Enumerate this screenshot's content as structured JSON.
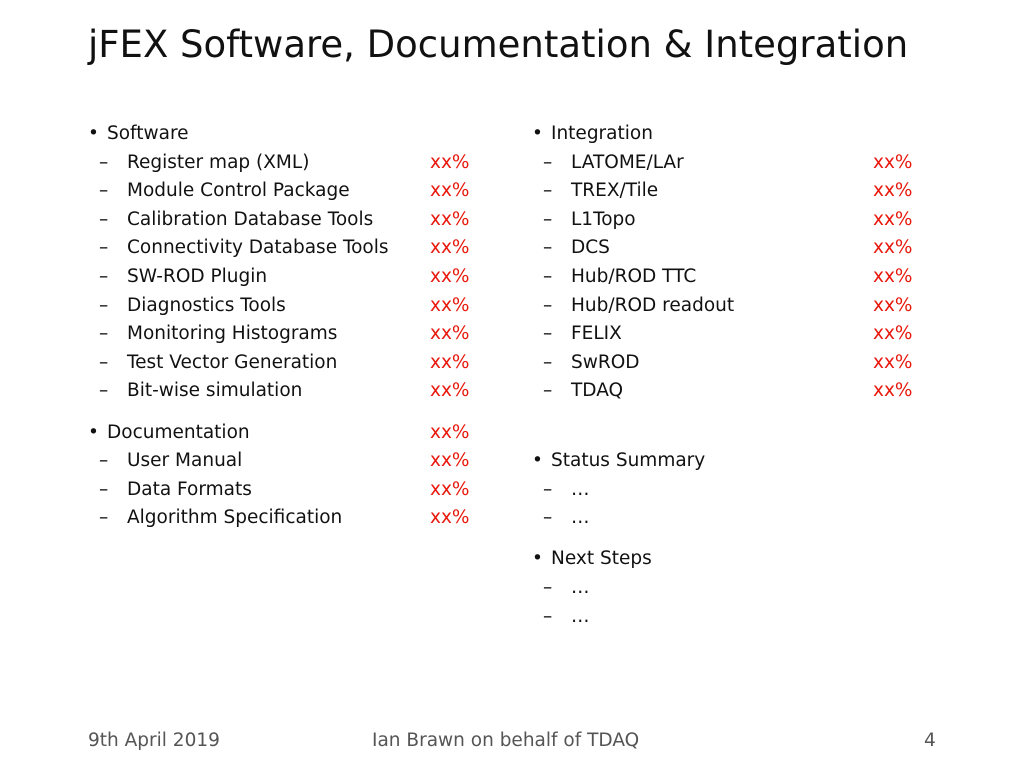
{
  "title": "jFEX Software, Documentation & Integration",
  "bullet_glyph": "•",
  "dash_glyph": "–",
  "left": {
    "software": {
      "heading": "Software",
      "items": [
        {
          "label": "Register map (XML)",
          "status": "xx%"
        },
        {
          "label": "Module Control Package",
          "status": "xx%"
        },
        {
          "label": "Calibration Database Tools",
          "status": "xx%"
        },
        {
          "label": "Connectivity Database Tools",
          "status": "xx%"
        },
        {
          "label": "SW-ROD Plugin",
          "status": "xx%"
        },
        {
          "label": "Diagnostics Tools",
          "status": "xx%"
        },
        {
          "label": "Monitoring Histograms",
          "status": "xx%"
        },
        {
          "label": "Test Vector Generation",
          "status": "xx%"
        },
        {
          "label": "Bit-wise simulation",
          "status": "xx%"
        }
      ]
    },
    "documentation": {
      "heading": "Documentation",
      "status": "xx%",
      "items": [
        {
          "label": "User Manual",
          "status": "xx%"
        },
        {
          "label": "Data Formats",
          "status": "xx%"
        },
        {
          "label": "Algorithm Specification",
          "status": "xx%"
        }
      ]
    }
  },
  "right": {
    "integration": {
      "heading": "Integration",
      "items": [
        {
          "label": "LATOME/LAr",
          "status": "xx%"
        },
        {
          "label": "TREX/Tile",
          "status": "xx%"
        },
        {
          "label": "L1Topo",
          "status": "xx%"
        },
        {
          "label": "DCS",
          "status": "xx%"
        },
        {
          "label": "Hub/ROD TTC",
          "status": "xx%"
        },
        {
          "label": "Hub/ROD readout",
          "status": "xx%"
        },
        {
          "label": "FELIX",
          "status": "xx%"
        },
        {
          "label": "SwROD",
          "status": "xx%"
        },
        {
          "label": "TDAQ",
          "status": "xx%"
        }
      ]
    },
    "status_summary": {
      "heading": "Status Summary",
      "items": [
        "…",
        "…"
      ]
    },
    "next_steps": {
      "heading": "Next Steps",
      "items": [
        "…",
        "…"
      ]
    }
  },
  "footer": {
    "date": "9th April 2019",
    "author": "Ian Brawn on behalf of TDAQ",
    "page": "4"
  },
  "colors": {
    "status_red": "#e8180c",
    "text": "#111111",
    "footer_text": "#555555"
  }
}
